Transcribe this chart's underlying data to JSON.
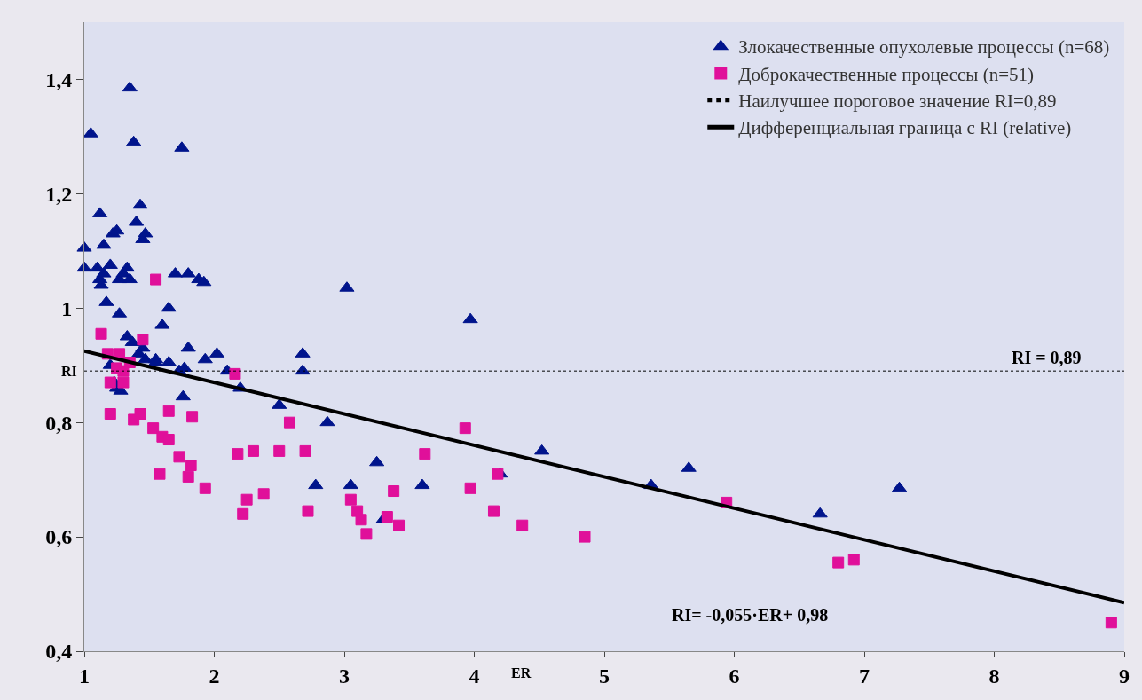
{
  "chart_data": {
    "type": "scatter",
    "xlabel": "ER",
    "ylabel": "RI",
    "xlim": [
      1,
      9
    ],
    "ylim": [
      0.4,
      1.5
    ],
    "xticks": [
      1,
      2,
      3,
      4,
      5,
      6,
      7,
      8,
      9
    ],
    "yticks": [
      {
        "value": 0.4,
        "label": "0,4"
      },
      {
        "value": 0.6,
        "label": "0,6"
      },
      {
        "value": 0.8,
        "label": "0,8"
      },
      {
        "value": 1,
        "label": "1"
      },
      {
        "value": 1.2,
        "label": "1,2"
      },
      {
        "value": 1.4,
        "label": "1,4"
      }
    ],
    "grid": false,
    "legend": "top right",
    "series": [
      {
        "name": "Злокачественные опухолевые процессы (n=68)",
        "marker": "triangle",
        "color": "#00148c",
        "x": [
          1.0,
          1.0,
          1.05,
          1.12,
          1.1,
          1.12,
          1.13,
          1.15,
          1.17,
          1.2,
          1.22,
          1.25,
          1.27,
          1.3,
          1.33,
          1.27,
          1.35,
          1.38,
          1.4,
          1.43,
          1.45,
          1.47,
          1.33,
          1.37,
          1.42,
          1.47,
          1.55,
          1.6,
          1.65,
          1.7,
          1.75,
          1.8,
          1.88,
          1.92,
          1.65,
          1.73,
          1.77,
          1.8,
          1.76,
          1.93,
          2.02,
          2.1,
          2.2,
          1.2,
          1.25,
          1.28,
          2.5,
          2.68,
          2.68,
          2.78,
          2.87,
          3.02,
          3.05,
          3.25,
          3.3,
          3.6,
          3.97,
          4.2,
          4.52,
          5.36,
          5.65,
          6.66,
          7.27,
          1.15,
          1.35,
          1.45,
          1.55,
          1.23
        ],
        "values": [
          1.105,
          1.07,
          1.305,
          1.165,
          1.07,
          1.05,
          1.04,
          1.11,
          1.01,
          1.075,
          1.13,
          1.135,
          1.05,
          1.06,
          1.07,
          0.99,
          1.385,
          1.29,
          1.15,
          1.18,
          1.12,
          1.13,
          0.95,
          0.94,
          0.92,
          0.91,
          0.91,
          0.97,
          1.0,
          1.06,
          1.28,
          1.06,
          1.05,
          1.045,
          0.905,
          0.89,
          0.895,
          0.93,
          0.845,
          0.91,
          0.92,
          0.89,
          0.86,
          0.9,
          0.86,
          0.855,
          0.83,
          0.92,
          0.89,
          0.69,
          0.8,
          1.035,
          0.69,
          0.73,
          0.63,
          0.69,
          0.98,
          0.71,
          0.75,
          0.69,
          0.72,
          0.64,
          0.685,
          1.06,
          1.05,
          0.93,
          0.905,
          0.87
        ]
      },
      {
        "name": "Доброкачественные процессы (n=51)",
        "marker": "square",
        "color": "#e0109a",
        "x": [
          1.13,
          1.18,
          1.2,
          1.2,
          1.27,
          1.3,
          1.3,
          1.35,
          1.38,
          1.43,
          1.45,
          1.55,
          1.53,
          1.58,
          1.6,
          1.65,
          1.65,
          1.73,
          1.8,
          1.82,
          1.83,
          1.93,
          2.16,
          2.18,
          2.22,
          2.25,
          2.3,
          2.38,
          2.5,
          2.58,
          2.7,
          2.72,
          3.05,
          3.1,
          3.13,
          3.17,
          3.33,
          3.38,
          3.42,
          3.62,
          3.93,
          3.97,
          4.15,
          4.18,
          4.37,
          4.85,
          5.94,
          6.8,
          6.92,
          8.9,
          1.25
        ],
        "values": [
          0.955,
          0.92,
          0.815,
          0.87,
          0.92,
          0.87,
          0.89,
          0.905,
          0.805,
          0.815,
          0.945,
          1.05,
          0.79,
          0.71,
          0.775,
          0.77,
          0.82,
          0.74,
          0.705,
          0.725,
          0.81,
          0.685,
          0.885,
          0.745,
          0.64,
          0.665,
          0.75,
          0.675,
          0.75,
          0.8,
          0.75,
          0.645,
          0.665,
          0.645,
          0.63,
          0.605,
          0.635,
          0.68,
          0.62,
          0.745,
          0.79,
          0.685,
          0.645,
          0.71,
          0.62,
          0.6,
          0.66,
          0.555,
          0.56,
          0.45,
          0.895
        ]
      },
      {
        "name": "Наилучшее пороговое значение RI=0,89",
        "type": "line",
        "line_style": "dotted",
        "marker": "none",
        "color": "#000000",
        "x": [
          1,
          9
        ],
        "values": [
          0.89,
          0.89
        ]
      },
      {
        "name": "Дифференциальная граница с RI (relative)",
        "type": "line",
        "line_style": "solid",
        "marker": "none",
        "color": "#000000",
        "x": [
          1,
          9
        ],
        "values": [
          0.925,
          0.485
        ]
      }
    ],
    "annotations": [
      {
        "text": "RI = 0,89",
        "x": 8.4,
        "y": 0.89
      },
      "RI= -0,055·ER+ 0,98"
    ]
  }
}
